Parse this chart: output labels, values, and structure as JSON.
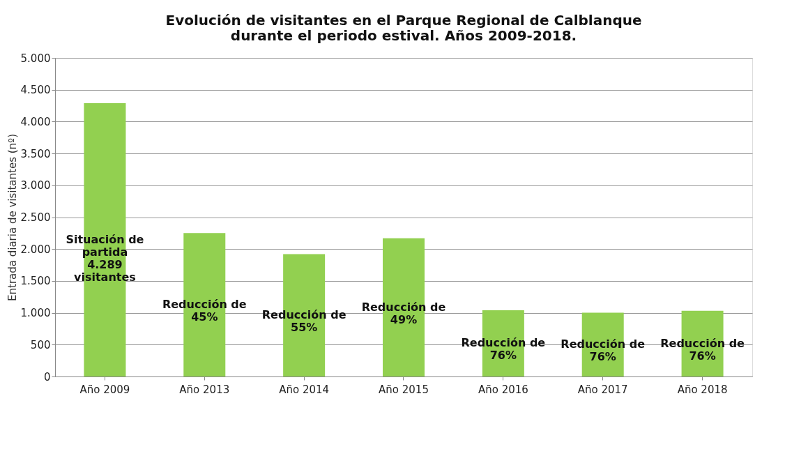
{
  "chart_data": {
    "type": "bar",
    "title": "Evolución de visitantes en el Parque Regional de Calblanque\ndurante el periodo estival. Años 2009-2018.",
    "ylabel": "Entrada diaria de visitantes (nº)",
    "categories": [
      "Año 2009",
      "Año 2013",
      "Año 2014",
      "Año 2015",
      "Año 2016",
      "Año 2017",
      "Año 2018"
    ],
    "values": [
      4289,
      2250,
      1920,
      2170,
      1040,
      1000,
      1030
    ],
    "color": "#92d050",
    "ylim": [
      0,
      5000
    ],
    "yticks": [
      {
        "value": 0,
        "label": "0"
      },
      {
        "value": 500,
        "label": "500"
      },
      {
        "value": 1000,
        "label": "1.000"
      },
      {
        "value": 1500,
        "label": "1.500"
      },
      {
        "value": 2000,
        "label": "2.000"
      },
      {
        "value": 2500,
        "label": "2.500"
      },
      {
        "value": 3000,
        "label": "3.000"
      },
      {
        "value": 3500,
        "label": "3.500"
      },
      {
        "value": 4000,
        "label": "4.000"
      },
      {
        "value": 4500,
        "label": "4.500"
      },
      {
        "value": 5000,
        "label": "5.000"
      }
    ],
    "grid": "y",
    "annotations": [
      "Situación de\npartida\n4.289\nvisitantes",
      "Reducción de\n45%",
      "Reducción de\n55%",
      "Reducción de\n49%",
      "Reducción de\n76%",
      "Reducción de\n76%",
      "Reducción de\n76%"
    ]
  }
}
